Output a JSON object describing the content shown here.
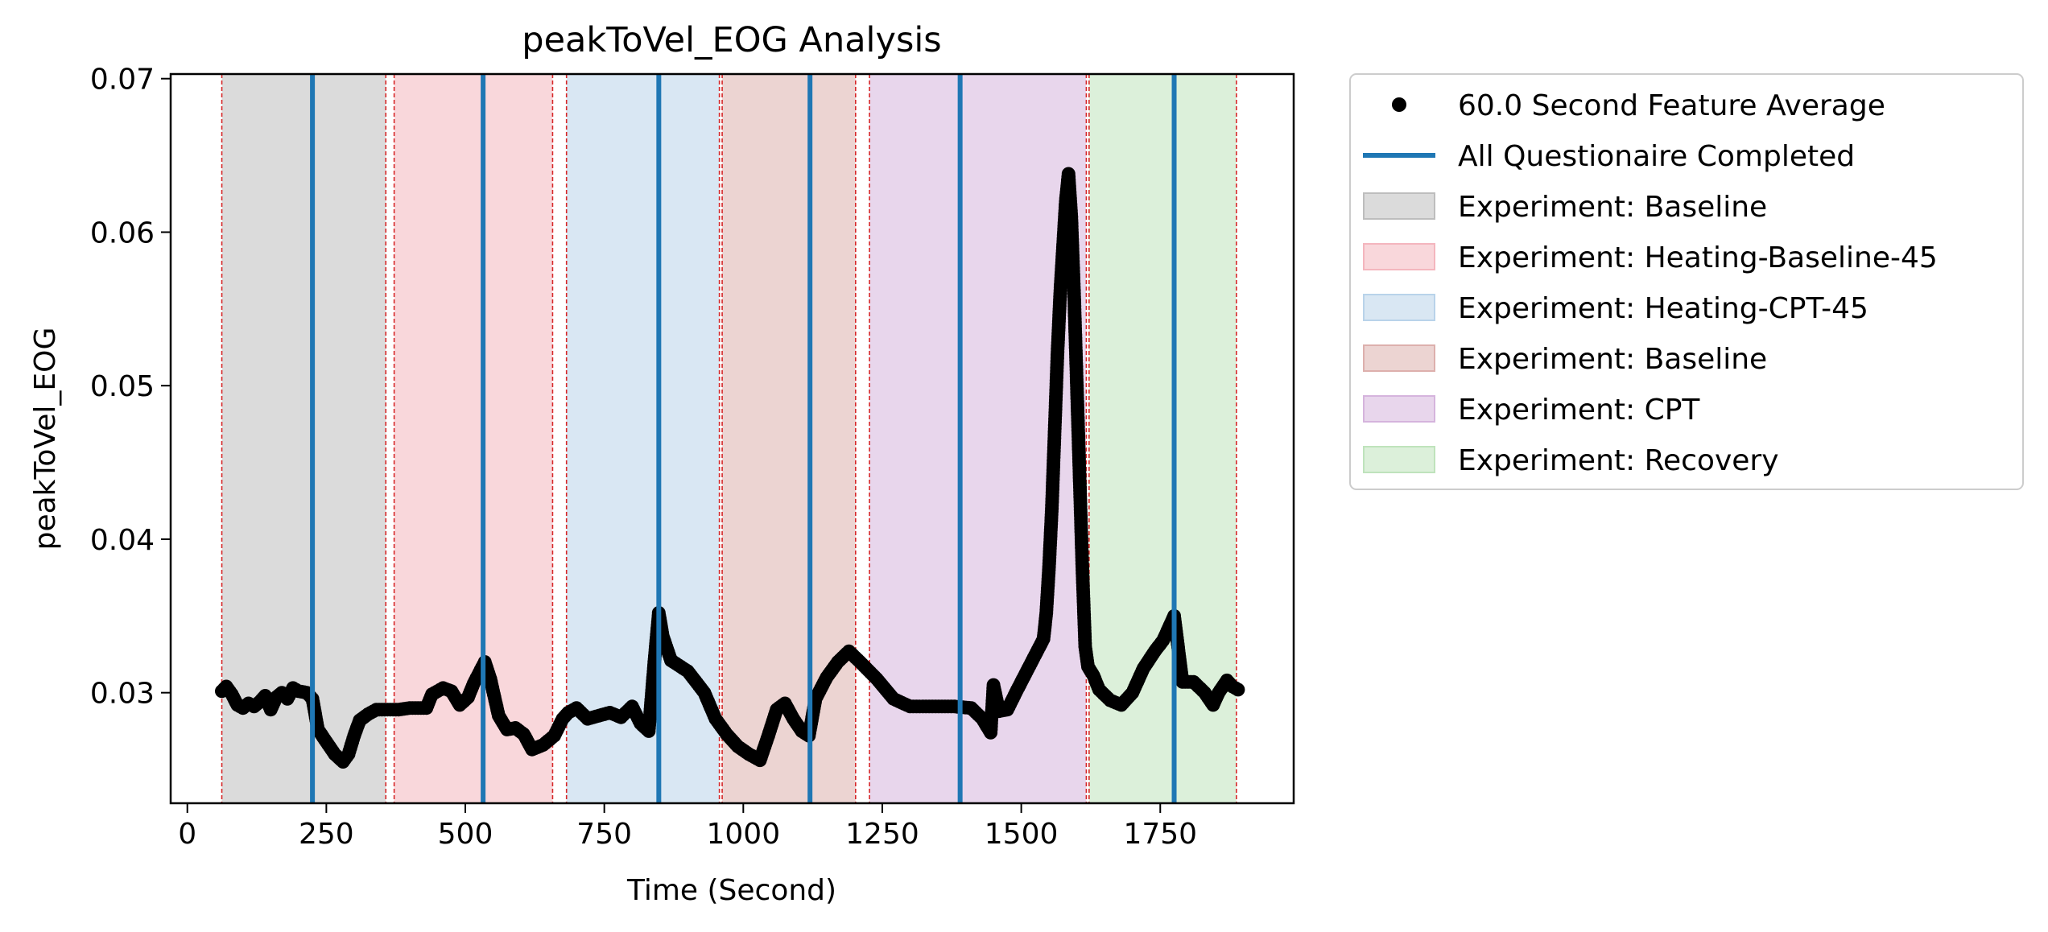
{
  "chart_data": {
    "type": "scatter",
    "title": "peakToVel_EOG Analysis",
    "xlabel": "Time (Second)",
    "ylabel": "peakToVel_EOG",
    "xlim": [
      -30,
      1990
    ],
    "ylim": [
      0.0228,
      0.0703
    ],
    "xticks": [
      0,
      250,
      500,
      750,
      1000,
      1250,
      1500,
      1750
    ],
    "xtick_labels": [
      "0",
      "250",
      "500",
      "750",
      "1000",
      "1250",
      "1500",
      "1750"
    ],
    "yticks": [
      0.03,
      0.04,
      0.05,
      0.06,
      0.07
    ],
    "ytick_labels": [
      "0.03",
      "0.04",
      "0.05",
      "0.06",
      "0.07"
    ],
    "grid": false,
    "legend_position": "outside-right-top",
    "series": [
      {
        "name": "60.0 Second Feature Average",
        "kind": "markers",
        "color": "#000000",
        "keypoints": [
          [
            62,
            0.0301
          ],
          [
            70,
            0.0304
          ],
          [
            80,
            0.0299
          ],
          [
            90,
            0.0292
          ],
          [
            100,
            0.029
          ],
          [
            110,
            0.0293
          ],
          [
            120,
            0.0291
          ],
          [
            130,
            0.0294
          ],
          [
            140,
            0.0298
          ],
          [
            150,
            0.0289
          ],
          [
            160,
            0.0297
          ],
          [
            170,
            0.03
          ],
          [
            180,
            0.0296
          ],
          [
            190,
            0.0303
          ],
          [
            200,
            0.0301
          ],
          [
            215,
            0.03
          ],
          [
            225,
            0.0296
          ],
          [
            235,
            0.0276
          ],
          [
            250,
            0.0268
          ],
          [
            265,
            0.026
          ],
          [
            280,
            0.0255
          ],
          [
            290,
            0.026
          ],
          [
            300,
            0.0272
          ],
          [
            310,
            0.0282
          ],
          [
            325,
            0.0286
          ],
          [
            340,
            0.0289
          ],
          [
            360,
            0.0289
          ],
          [
            380,
            0.0289
          ],
          [
            400,
            0.029
          ],
          [
            430,
            0.029
          ],
          [
            440,
            0.0299
          ],
          [
            460,
            0.0303
          ],
          [
            475,
            0.0301
          ],
          [
            490,
            0.0292
          ],
          [
            505,
            0.0297
          ],
          [
            515,
            0.0306
          ],
          [
            525,
            0.0313
          ],
          [
            535,
            0.032
          ],
          [
            545,
            0.0309
          ],
          [
            560,
            0.0285
          ],
          [
            575,
            0.0276
          ],
          [
            590,
            0.0277
          ],
          [
            605,
            0.0273
          ],
          [
            620,
            0.0263
          ],
          [
            640,
            0.0266
          ],
          [
            660,
            0.0272
          ],
          [
            675,
            0.0283
          ],
          [
            685,
            0.0287
          ],
          [
            700,
            0.029
          ],
          [
            720,
            0.0283
          ],
          [
            740,
            0.0285
          ],
          [
            760,
            0.0287
          ],
          [
            780,
            0.0284
          ],
          [
            800,
            0.0291
          ],
          [
            815,
            0.028
          ],
          [
            830,
            0.0275
          ],
          [
            840,
            0.032
          ],
          [
            848,
            0.0352
          ],
          [
            855,
            0.0337
          ],
          [
            870,
            0.0321
          ],
          [
            900,
            0.0314
          ],
          [
            930,
            0.03
          ],
          [
            950,
            0.0283
          ],
          [
            970,
            0.0273
          ],
          [
            990,
            0.0265
          ],
          [
            1010,
            0.026
          ],
          [
            1030,
            0.0256
          ],
          [
            1045,
            0.0272
          ],
          [
            1060,
            0.0289
          ],
          [
            1075,
            0.0293
          ],
          [
            1090,
            0.0283
          ],
          [
            1105,
            0.0275
          ],
          [
            1118,
            0.0272
          ],
          [
            1130,
            0.0296
          ],
          [
            1150,
            0.031
          ],
          [
            1170,
            0.032
          ],
          [
            1190,
            0.0327
          ],
          [
            1210,
            0.032
          ],
          [
            1240,
            0.0309
          ],
          [
            1270,
            0.0296
          ],
          [
            1300,
            0.0291
          ],
          [
            1340,
            0.0291
          ],
          [
            1380,
            0.0291
          ],
          [
            1410,
            0.029
          ],
          [
            1430,
            0.0283
          ],
          [
            1445,
            0.0274
          ],
          [
            1450,
            0.0305
          ],
          [
            1460,
            0.0288
          ],
          [
            1475,
            0.0289
          ],
          [
            1490,
            0.03
          ],
          [
            1500,
            0.0307
          ],
          [
            1510,
            0.0314
          ],
          [
            1520,
            0.0321
          ],
          [
            1530,
            0.0328
          ],
          [
            1540,
            0.0335
          ],
          [
            1545,
            0.0352
          ],
          [
            1550,
            0.0382
          ],
          [
            1555,
            0.042
          ],
          [
            1560,
            0.047
          ],
          [
            1565,
            0.052
          ],
          [
            1570,
            0.056
          ],
          [
            1575,
            0.059
          ],
          [
            1580,
            0.062
          ],
          [
            1585,
            0.0638
          ],
          [
            1590,
            0.061
          ],
          [
            1595,
            0.056
          ],
          [
            1600,
            0.05
          ],
          [
            1605,
            0.044
          ],
          [
            1610,
            0.038
          ],
          [
            1615,
            0.033
          ],
          [
            1620,
            0.0317
          ],
          [
            1630,
            0.0311
          ],
          [
            1640,
            0.0302
          ],
          [
            1660,
            0.0295
          ],
          [
            1680,
            0.0292
          ],
          [
            1700,
            0.03
          ],
          [
            1720,
            0.0316
          ],
          [
            1740,
            0.0327
          ],
          [
            1755,
            0.0334
          ],
          [
            1765,
            0.0342
          ],
          [
            1775,
            0.035
          ],
          [
            1790,
            0.0307
          ],
          [
            1810,
            0.0307
          ],
          [
            1830,
            0.03
          ],
          [
            1845,
            0.0292
          ],
          [
            1855,
            0.03
          ],
          [
            1870,
            0.0308
          ],
          [
            1880,
            0.0304
          ],
          [
            1890,
            0.0302
          ]
        ]
      }
    ],
    "questionnaire_lines": {
      "name": "All Questionaire Completed",
      "color": "#1f77b4",
      "x": [
        225,
        532,
        848,
        1120,
        1390,
        1775
      ]
    },
    "regions": [
      {
        "name": "Experiment: Baseline",
        "start": 62,
        "end": 357,
        "color": "#bdbdbd"
      },
      {
        "name": "Experiment: Heating-Baseline-45",
        "start": 372,
        "end": 657,
        "color": "#f4b6be"
      },
      {
        "name": "Experiment: Heating-CPT-45",
        "start": 682,
        "end": 957,
        "color": "#b9d3ea"
      },
      {
        "name": "Experiment: Baseline",
        "start": 962,
        "end": 1202,
        "color": "#ddb0ad"
      },
      {
        "name": "Experiment: CPT",
        "start": 1227,
        "end": 1617,
        "color": "#d5b4dd"
      },
      {
        "name": "Experiment: Recovery",
        "start": 1622,
        "end": 1887,
        "color": "#bfe3bc"
      }
    ]
  }
}
